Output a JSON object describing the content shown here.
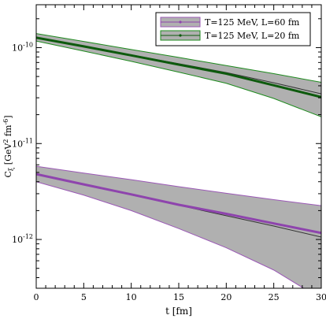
{
  "chart_data": {
    "type": "line",
    "xlabel": "t [fm]",
    "ylabel_main": "C",
    "ylabel_sub": "ξ",
    "ylabel_units_pre": " [GeV",
    "ylabel_units_exp1": "2",
    "ylabel_units_mid": " fm",
    "ylabel_units_exp2": "-6",
    "ylabel_units_post": "]",
    "xlim": [
      0,
      30
    ],
    "ylim": [
      3.1e-13,
      2.8e-10
    ],
    "yscale": "log",
    "grid": false,
    "legend_position": "top-right",
    "x_ticks": [
      0,
      5,
      10,
      15,
      20,
      25,
      30
    ],
    "x_tick_labels": [
      "0",
      "5",
      "10",
      "15",
      "20",
      "25",
      "30"
    ],
    "y_ticks": [
      1e-12,
      1e-11,
      1e-10
    ],
    "y_tick_labels": [
      {
        "base": "10",
        "exp": "-12"
      },
      {
        "base": "10",
        "exp": "-11"
      },
      {
        "base": "10",
        "exp": "-10"
      }
    ],
    "series": [
      {
        "name": "T=125 MeV, L=60 fm",
        "color": "#9b59b6",
        "band_fill": "#b0b0b0",
        "band_edge": "#9b59b6",
        "central_line": "#8e44ad",
        "x": [
          0,
          5,
          10,
          15,
          20,
          25,
          30
        ],
        "y": [
          4.8e-12,
          3.75e-12,
          2.95e-12,
          2.3e-12,
          1.85e-12,
          1.47e-12,
          1.17e-12
        ],
        "y_upper": [
          5.8e-12,
          4.92e-12,
          4.2e-12,
          3.55e-12,
          3.03e-12,
          2.6e-12,
          2.25e-12
        ],
        "y_lower": [
          4e-12,
          2.9e-12,
          2e-12,
          1.3e-12,
          8.2e-13,
          4.8e-13,
          2.4e-13
        ],
        "extra_line": [
          4.8e-12,
          3.74e-12,
          2.91e-12,
          2.27e-12,
          1.77e-12,
          1.38e-12,
          1.06e-12
        ]
      },
      {
        "name": "T=125 MeV, L=20 fm",
        "color": "#1e8a1e",
        "band_fill": "#b0b0b0",
        "band_edge": "#1e8a1e",
        "central_line": "#0d5a0d",
        "x": [
          0,
          5,
          10,
          15,
          20,
          25,
          30
        ],
        "y": [
          1.27e-10,
          1.03e-10,
          8.3e-11,
          6.65e-11,
          5.35e-11,
          4.05e-11,
          3.05e-11
        ],
        "y_upper": [
          1.4e-10,
          1.16e-10,
          9.55e-11,
          7.9e-11,
          6.5e-11,
          5.35e-11,
          4.35e-11
        ],
        "y_lower": [
          1.17e-10,
          9.2e-11,
          7.2e-11,
          5.55e-11,
          4.25e-11,
          2.95e-11,
          1.9e-11
        ],
        "extra_line": [
          1.27e-10,
          1.03e-10,
          8.4e-11,
          6.8e-11,
          5.5e-11,
          4.3e-11,
          3.3e-11
        ]
      }
    ]
  }
}
